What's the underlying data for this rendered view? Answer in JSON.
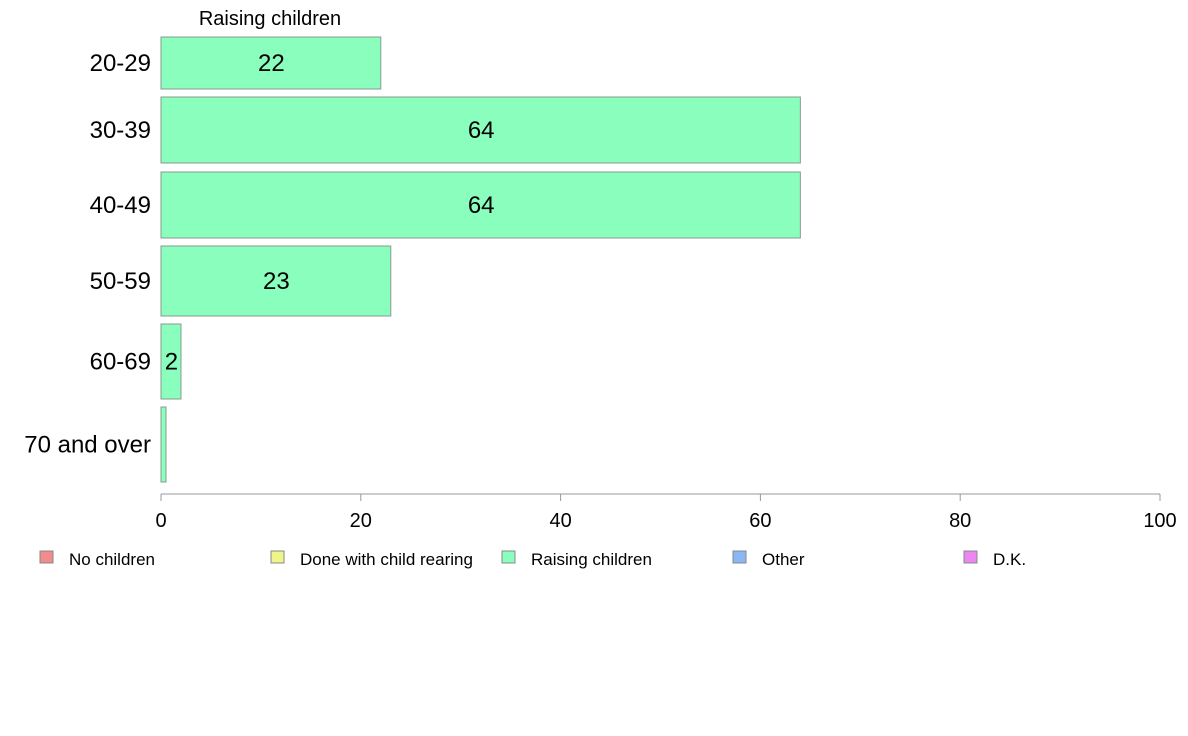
{
  "chart_data": {
    "type": "bar",
    "orientation": "horizontal",
    "facet_title": "Raising children",
    "categories": [
      "20-29",
      "30-39",
      "40-49",
      "50-59",
      "60-69",
      "70 and over"
    ],
    "series": [
      {
        "name": "Raising children",
        "values": [
          22,
          64,
          64,
          23,
          2,
          0.5
        ],
        "labels": [
          "22",
          "64",
          "64",
          "23",
          "2",
          ""
        ]
      }
    ],
    "xlim": [
      0,
      100
    ],
    "xticks": [
      "0",
      "20",
      "40",
      "60",
      "80",
      "100"
    ],
    "grid": false,
    "legend": {
      "placement": "bottom",
      "entries": [
        {
          "label": "No children",
          "color": "#f28b8b"
        },
        {
          "label": "Done with child rearing",
          "color": "#eef58a"
        },
        {
          "label": "Raising children",
          "color": "#8affbd"
        },
        {
          "label": "Other",
          "color": "#8ab8f5"
        },
        {
          "label": "D.K.",
          "color": "#ec86f0"
        }
      ]
    },
    "bar_color": "#8affbd",
    "bar_stroke": "#8a9a90",
    "axis_color": "#999999"
  }
}
